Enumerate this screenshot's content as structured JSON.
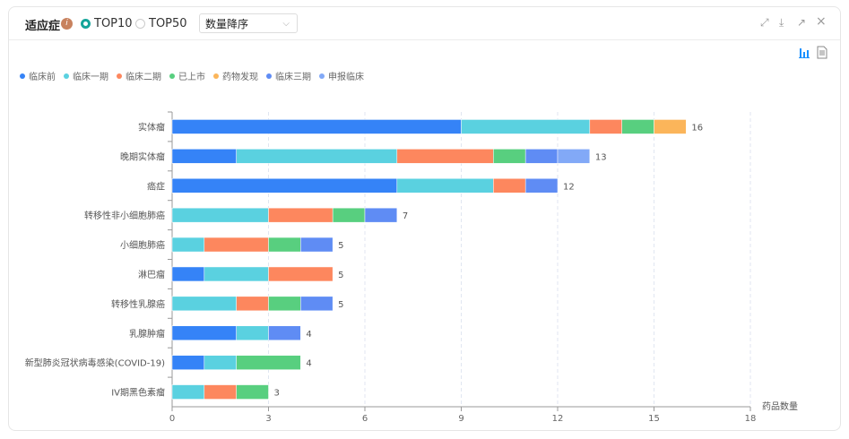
{
  "header": {
    "title": "适应症",
    "info_icon": "i",
    "radios": [
      {
        "label": "TOP10",
        "selected": true
      },
      {
        "label": "TOP50",
        "selected": false
      }
    ],
    "sort_select": "数量降序"
  },
  "toolbar": {
    "fullscreen": "⤢",
    "download": "⤓",
    "open": "↗",
    "close": "×",
    "bar_view": "bar-chart-icon",
    "table_view": "document-icon"
  },
  "chart_data": {
    "type": "bar",
    "orientation": "horizontal",
    "stacked": true,
    "categories": [
      "实体瘤",
      "晚期实体瘤",
      "癌症",
      "转移性非小细胞肺癌",
      "小细胞肺癌",
      "淋巴瘤",
      "转移性乳腺癌",
      "乳腺肿瘤",
      "新型肺炎冠状病毒感染(COVID-19)",
      "IV期黑色素瘤"
    ],
    "series": [
      {
        "name": "临床前",
        "color": "#3583f7",
        "values": [
          9,
          2,
          7,
          0,
          0,
          1,
          0,
          2,
          1,
          0
        ]
      },
      {
        "name": "临床一期",
        "color": "#5ad1e0",
        "values": [
          4,
          5,
          3,
          3,
          1,
          2,
          2,
          1,
          1,
          1
        ]
      },
      {
        "name": "临床二期",
        "color": "#fd875e",
        "values": [
          1,
          3,
          1,
          2,
          2,
          2,
          1,
          0,
          0,
          1
        ]
      },
      {
        "name": "已上市",
        "color": "#58cf7f",
        "values": [
          1,
          1,
          0,
          1,
          1,
          0,
          1,
          0,
          2,
          1
        ]
      },
      {
        "name": "药物发现",
        "color": "#fbb55a",
        "values": [
          1,
          0,
          0,
          0,
          0,
          0,
          0,
          0,
          0,
          0
        ]
      },
      {
        "name": "临床三期",
        "color": "#5f8cf4",
        "values": [
          0,
          1,
          1,
          1,
          1,
          0,
          1,
          1,
          0,
          0
        ]
      },
      {
        "name": "申报临床",
        "color": "#82a9f7",
        "values": [
          0,
          1,
          0,
          0,
          0,
          0,
          0,
          0,
          0,
          0
        ]
      }
    ],
    "totals": [
      16,
      13,
      12,
      7,
      5,
      5,
      5,
      4,
      4,
      3
    ],
    "xlim": [
      0,
      18
    ],
    "xticks": [
      0,
      3,
      6,
      9,
      12,
      15,
      18
    ],
    "xlabel": "药品数量",
    "grid": true,
    "legend_position": "top-left"
  }
}
